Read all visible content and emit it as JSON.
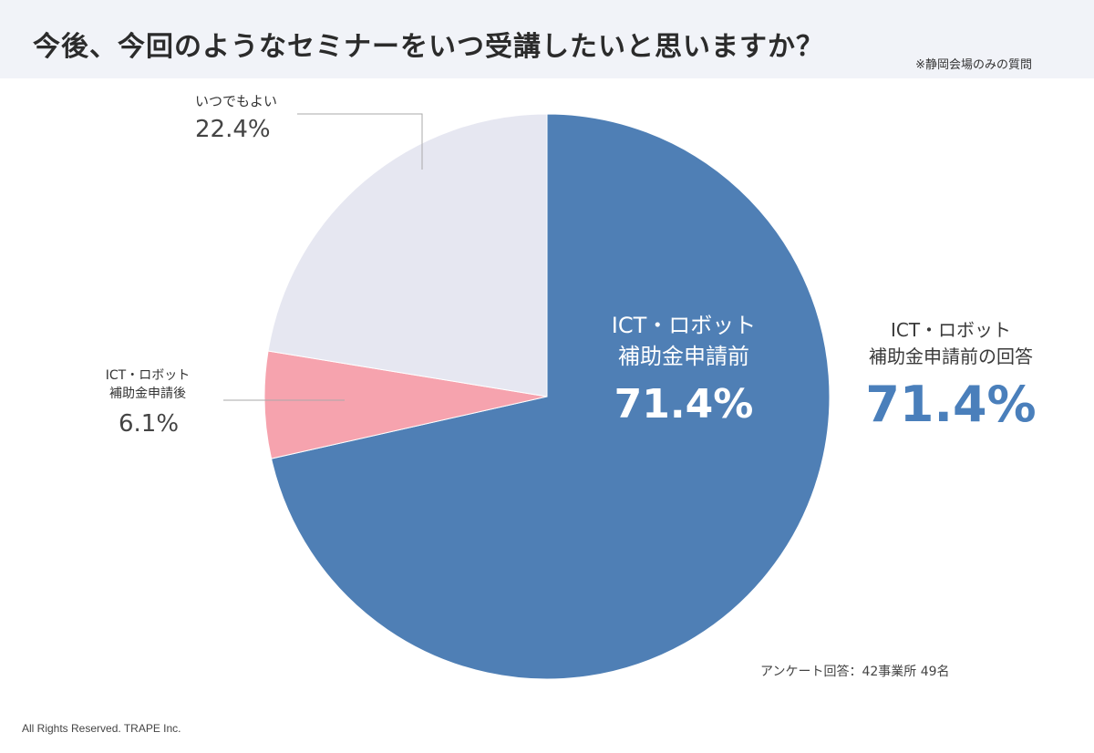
{
  "header": {
    "title": "今後、今回のようなセミナーをいつ受講したいと思いますか？",
    "note": "※静岡会場のみの質問"
  },
  "chart_data": {
    "type": "pie",
    "slices": [
      {
        "label_line1": "ICT・ロボット",
        "label_line2": "補助金申請前",
        "value": 71.4,
        "display": "71.4%",
        "color": "#4f7fb5"
      },
      {
        "label_line1": "ICT・ロボット",
        "label_line2": "補助金申請後",
        "value": 6.1,
        "display": "6.1%",
        "color": "#f6a3ae"
      },
      {
        "label": "いつでもよい",
        "value": 22.4,
        "display": "22.4%",
        "color": "#e6e7f1"
      }
    ],
    "callout": {
      "line1": "ICT・ロボット",
      "line2": "補助金申請前の回答",
      "value": "71.4%",
      "color": "#4a7fbb"
    }
  },
  "footer": {
    "respondents": "アンケート回答：42事業所 49名",
    "copyright": "All Rights Reserved. TRAPE Inc."
  }
}
